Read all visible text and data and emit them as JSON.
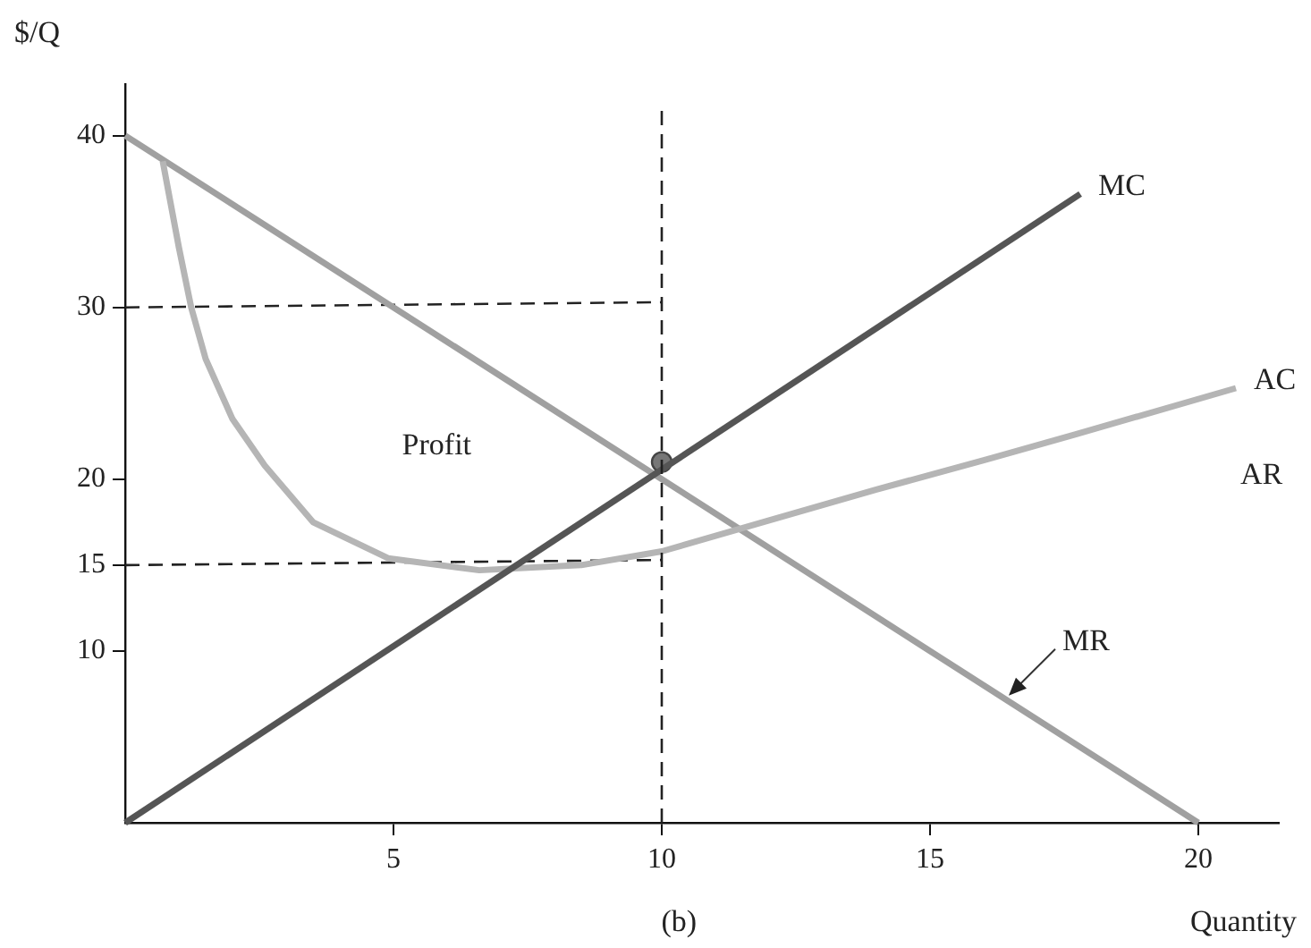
{
  "chart_data": {
    "type": "line",
    "xlabel": "Quantity",
    "ylabel": "$/Q",
    "xlim": [
      0,
      21.5
    ],
    "ylim": [
      0,
      43
    ],
    "xticks": [
      5,
      10,
      15,
      20
    ],
    "yticks": [
      10,
      15,
      20,
      30,
      40
    ],
    "grid": false,
    "legend": false,
    "marker": "none",
    "series": [
      {
        "name": "MC",
        "color": "#555555",
        "x": [
          0,
          17.8
        ],
        "values": [
          0,
          36.6
        ]
      },
      {
        "name": "AC",
        "color": "#b5b5b5",
        "x": [
          0.7,
          1.0,
          1.23,
          1.5,
          2.0,
          2.6,
          3.5,
          4.9,
          6.6,
          8.5,
          10,
          12,
          14,
          16,
          17.7,
          20.7
        ],
        "values": [
          38.5,
          33.5,
          30,
          27,
          23.5,
          20.8,
          17.5,
          15.4,
          14.7,
          15,
          15.8,
          17.6,
          19.4,
          21.1,
          22.6,
          25.3
        ]
      },
      {
        "name": "MR",
        "color": "#a0a0a0",
        "x": [
          0,
          20
        ],
        "values": [
          40,
          0
        ]
      },
      {
        "type": "line",
        "line_style": "dashed",
        "color": "#222222",
        "x": [
          0,
          10
        ],
        "values": [
          30,
          30.3
        ]
      },
      {
        "type": "line",
        "line_style": "dashed",
        "color": "#222222",
        "x": [
          0,
          10
        ],
        "values": [
          15,
          15.3
        ]
      },
      {
        "type": "scatter",
        "marker": "circle",
        "color": "#777777",
        "x": [
          10
        ],
        "values": [
          21
        ]
      }
    ],
    "ref_lines": [
      {
        "axis": "x",
        "value": 10,
        "color": "#222222",
        "line_style": "dashed"
      }
    ],
    "annotations": [
      "Profit",
      "AR",
      "(b)"
    ]
  }
}
